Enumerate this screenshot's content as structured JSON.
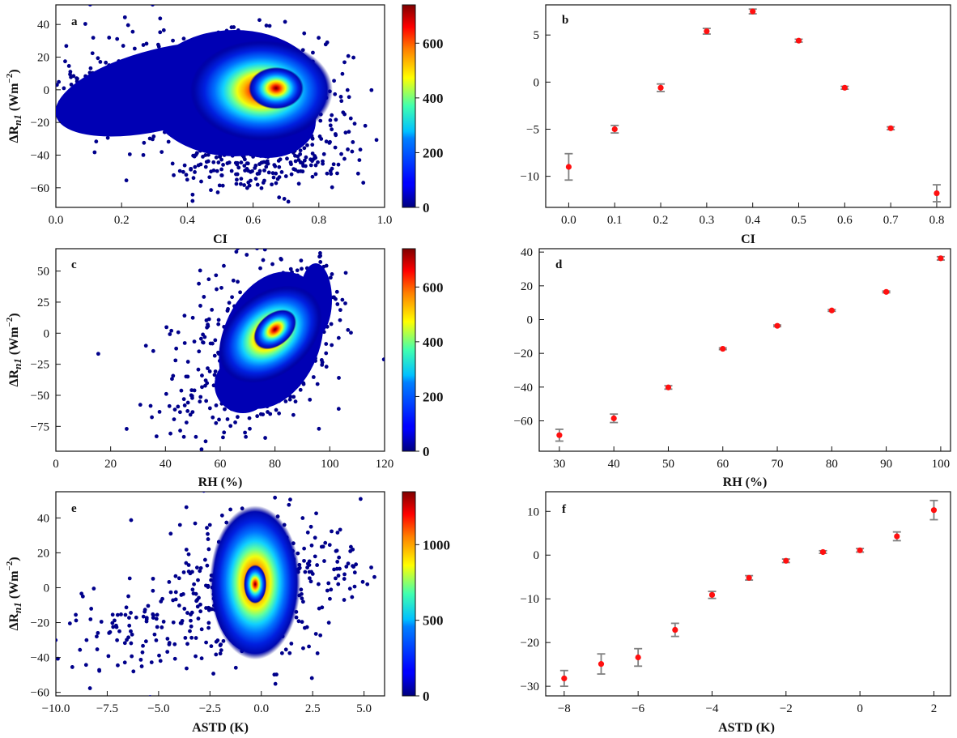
{
  "chart_data": [
    {
      "panel": "a",
      "type": "scatter",
      "subtype": "density",
      "xlabel": "CI",
      "ylabel": "ΔR_n1 (Wm^-2)",
      "xlim": [
        0,
        1
      ],
      "ylim": [
        -72,
        52
      ],
      "xticks": [
        0.0,
        0.2,
        0.4,
        0.6,
        0.8,
        1.0
      ],
      "xtick_labels": [
        "0.0",
        "0.2",
        "0.4",
        "0.6",
        "0.8",
        "1.0"
      ],
      "yticks": [
        -60,
        -40,
        -20,
        0,
        20,
        40
      ],
      "ytick_labels": [
        "−60",
        "−40",
        "−20",
        "0",
        "20",
        "40"
      ],
      "peak": {
        "x": 0.67,
        "y": 1
      },
      "colorbar": {
        "min": 0,
        "max": 740,
        "ticks": [
          0,
          200,
          400,
          600
        ],
        "tick_labels": [
          "0",
          "200",
          "400",
          "600"
        ]
      }
    },
    {
      "panel": "b",
      "type": "scatter",
      "subtype": "errorbar",
      "xlabel": "CI",
      "ylabel": "",
      "xlim": [
        -0.05,
        0.83
      ],
      "ylim": [
        -13.3,
        8.2
      ],
      "xticks": [
        0.0,
        0.1,
        0.2,
        0.3,
        0.4,
        0.5,
        0.6,
        0.7,
        0.8
      ],
      "xtick_labels": [
        "0.0",
        "0.1",
        "0.2",
        "0.3",
        "0.4",
        "0.5",
        "0.6",
        "0.7",
        "0.8"
      ],
      "yticks": [
        -10,
        -5,
        0,
        5
      ],
      "ytick_labels": [
        "−10",
        "−5",
        "0",
        "5"
      ],
      "x": [
        0.0,
        0.1,
        0.2,
        0.3,
        0.4,
        0.5,
        0.6,
        0.7,
        0.8
      ],
      "values": [
        -9.0,
        -5.0,
        -0.6,
        5.4,
        7.5,
        4.4,
        -0.6,
        -4.9,
        -11.8
      ],
      "errors": [
        1.4,
        0.4,
        0.4,
        0.3,
        0.25,
        0.15,
        0.15,
        0.15,
        0.9
      ]
    },
    {
      "panel": "c",
      "type": "scatter",
      "subtype": "density",
      "xlabel": "RH (%)",
      "ylabel": "ΔR_n1 (Wm^-2)",
      "xlim": [
        0,
        120
      ],
      "ylim": [
        -95,
        68
      ],
      "xticks": [
        0,
        20,
        40,
        60,
        80,
        100,
        120
      ],
      "xtick_labels": [
        "0",
        "20",
        "40",
        "60",
        "80",
        "100",
        "120"
      ],
      "yticks": [
        -75,
        -50,
        -25,
        0,
        25,
        50
      ],
      "ytick_labels": [
        "−75",
        "−50",
        "−25",
        "0",
        "25",
        "50"
      ],
      "peak": {
        "x": 80,
        "y": 3
      },
      "colorbar": {
        "min": 0,
        "max": 740,
        "ticks": [
          0,
          200,
          400,
          600
        ],
        "tick_labels": [
          "0",
          "200",
          "400",
          "600"
        ]
      }
    },
    {
      "panel": "d",
      "type": "scatter",
      "subtype": "errorbar",
      "xlabel": "RH (%)",
      "ylabel": "",
      "xlim": [
        26.3,
        101.8
      ],
      "ylim": [
        -78,
        42
      ],
      "xticks": [
        30,
        40,
        50,
        60,
        70,
        80,
        90,
        100
      ],
      "xtick_labels": [
        "30",
        "40",
        "50",
        "60",
        "70",
        "80",
        "90",
        "100"
      ],
      "yticks": [
        -60,
        -40,
        -20,
        0,
        20,
        40
      ],
      "ytick_labels": [
        "−60",
        "−40",
        "−20",
        "0",
        "20",
        "40"
      ],
      "x": [
        30,
        40,
        50,
        60,
        70,
        80,
        90,
        100
      ],
      "values": [
        -68.5,
        -58.5,
        -40.2,
        -17.3,
        -3.7,
        5.4,
        16.4,
        36.3
      ],
      "errors": [
        3.5,
        2.5,
        1.0,
        0.5,
        0.5,
        0.5,
        0.5,
        1.0
      ]
    },
    {
      "panel": "e",
      "type": "scatter",
      "subtype": "density",
      "xlabel": "ASTD (K)",
      "ylabel": "ΔR_n1 (Wm^-2)",
      "xlim": [
        -10,
        6
      ],
      "ylim": [
        -62,
        55
      ],
      "xticks": [
        -10,
        -7.5,
        -5,
        -2.5,
        0,
        2.5,
        5
      ],
      "xtick_labels": [
        "−10.0",
        "−7.5",
        "−5.0",
        "−2.5",
        "0.0",
        "2.5",
        "5.0"
      ],
      "yticks": [
        -60,
        -40,
        -20,
        0,
        20,
        40
      ],
      "ytick_labels": [
        "−60",
        "−40",
        "−20",
        "0",
        "20",
        "40"
      ],
      "peak": {
        "x": -0.3,
        "y": 2
      },
      "colorbar": {
        "min": 0,
        "max": 1350,
        "ticks": [
          0,
          500,
          1000
        ],
        "tick_labels": [
          "0",
          "500",
          "1000"
        ]
      }
    },
    {
      "panel": "f",
      "type": "scatter",
      "subtype": "errorbar",
      "xlabel": "ASTD (K)",
      "ylabel": "",
      "xlim": [
        -8.5,
        2.45
      ],
      "ylim": [
        -32.2,
        14.5
      ],
      "xticks": [
        -8,
        -6,
        -4,
        -2,
        0,
        2
      ],
      "xtick_labels": [
        "−8",
        "−6",
        "−4",
        "−2",
        "0",
        "2"
      ],
      "yticks": [
        -30,
        -20,
        -10,
        0,
        10
      ],
      "ytick_labels": [
        "−30",
        "−20",
        "−10",
        "0",
        "10"
      ],
      "x": [
        -8,
        -7,
        -6,
        -5,
        -4,
        -3,
        -2,
        -1,
        0,
        1,
        2
      ],
      "values": [
        -28.2,
        -24.9,
        -23.4,
        -17.1,
        -9.1,
        -5.2,
        -1.3,
        0.7,
        1.1,
        4.3,
        10.3
      ],
      "errors": [
        1.8,
        2.3,
        2.0,
        1.5,
        0.8,
        0.5,
        0.4,
        0.3,
        0.4,
        1.0,
        2.2
      ]
    }
  ]
}
